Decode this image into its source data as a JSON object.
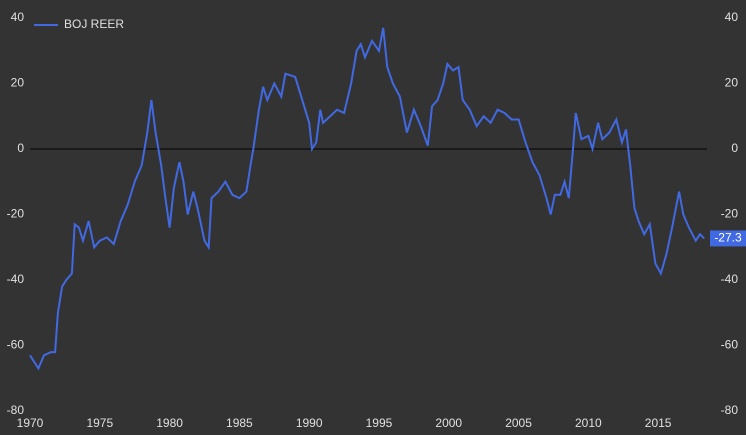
{
  "chart_data": {
    "type": "line",
    "legend": "top-left",
    "zero_line": true,
    "series": [
      {
        "name": "BOJ REER",
        "color": "#4169e1",
        "x": [
          1970,
          1970.3,
          1970.6,
          1971,
          1971.5,
          1971.8,
          1972,
          1972.3,
          1972.6,
          1973,
          1973.2,
          1973.5,
          1973.8,
          1974.2,
          1974.6,
          1975,
          1975.5,
          1976,
          1976.5,
          1977,
          1977.5,
          1978,
          1978.4,
          1978.7,
          1979,
          1979.4,
          1979.7,
          1980,
          1980.3,
          1980.7,
          1981,
          1981.3,
          1981.7,
          1982,
          1982.5,
          1982.8,
          1983,
          1983.5,
          1984,
          1984.5,
          1985,
          1985.5,
          1985.8,
          1986,
          1986.4,
          1986.7,
          1987,
          1987.5,
          1988,
          1988.3,
          1989,
          1989.5,
          1990,
          1990.2,
          1990.5,
          1990.8,
          1991,
          1991.5,
          1992,
          1992.5,
          1993,
          1993.4,
          1993.7,
          1994,
          1994.5,
          1995,
          1995.3,
          1995.6,
          1996,
          1996.5,
          1997,
          1997.5,
          1998,
          1998.5,
          1998.8,
          1999.2,
          1999.6,
          1999.9,
          2000.3,
          2000.7,
          2001,
          2001.5,
          2002,
          2002.5,
          2003,
          2003.5,
          2004,
          2004.5,
          2005,
          2005.5,
          2006,
          2006.5,
          2007,
          2007.3,
          2007.6,
          2008,
          2008.3,
          2008.6,
          2008.9,
          2009.1,
          2009.5,
          2010,
          2010.3,
          2010.7,
          2011,
          2011.5,
          2012,
          2012.4,
          2012.7,
          2013,
          2013.3,
          2013.6,
          2014,
          2014.4,
          2014.8,
          2015.2,
          2015.6,
          2016,
          2016.5,
          2016.8,
          2017.2,
          2017.7,
          2018,
          2018.3
        ],
        "values": [
          -63,
          -65,
          -67,
          -63,
          -62,
          -62,
          -50,
          -42,
          -40,
          -38,
          -23,
          -24,
          -28,
          -22,
          -30,
          -28,
          -27,
          -29,
          -22,
          -17,
          -10,
          -5,
          5,
          15,
          5,
          -5,
          -15,
          -24,
          -12,
          -4,
          -10,
          -20,
          -13,
          -18,
          -28,
          -30,
          -15,
          -13,
          -10,
          -14,
          -15,
          -13,
          -5,
          0,
          12,
          19,
          15,
          20,
          16,
          23,
          22,
          15,
          8,
          0,
          2,
          12,
          8,
          10,
          12,
          11,
          20,
          30,
          32,
          28,
          33,
          30,
          37,
          25,
          20,
          16,
          5,
          12,
          7,
          1,
          13,
          15,
          20,
          26,
          24,
          25,
          15,
          12,
          7,
          10,
          8,
          12,
          11,
          9,
          9,
          2,
          -4,
          -8,
          -15,
          -20,
          -14,
          -14,
          -10,
          -15,
          0,
          11,
          3,
          4,
          0,
          8,
          3,
          5,
          9,
          2,
          6,
          -5,
          -18,
          -22,
          -26,
          -23,
          -35,
          -38,
          -32,
          -24,
          -13,
          -20,
          -24,
          -28,
          -26,
          -27.3
        ]
      }
    ],
    "end_label": -27.3,
    "xlim": [
      1970,
      2018.5
    ],
    "xticks": [
      1970,
      1975,
      1980,
      1985,
      1990,
      1995,
      2000,
      2005,
      2010,
      2015
    ],
    "ylim": [
      -80,
      40
    ],
    "yticks": [
      -80,
      -60,
      -40,
      -20,
      0,
      20,
      40
    ],
    "y2lim": [
      -80,
      40
    ],
    "y2ticks": [
      -80,
      -60,
      -40,
      -20,
      0,
      20,
      40
    ]
  }
}
